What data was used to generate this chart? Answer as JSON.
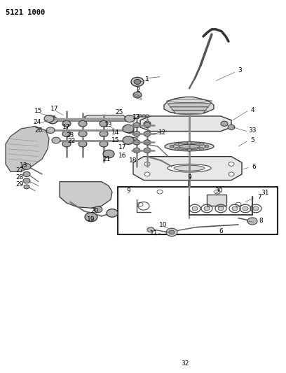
{
  "title": "5121 1000",
  "bg_color": "#ffffff",
  "line_color": "#000000",
  "fig_width": 4.08,
  "fig_height": 5.33,
  "dpi": 100,
  "aspect": "equal"
}
